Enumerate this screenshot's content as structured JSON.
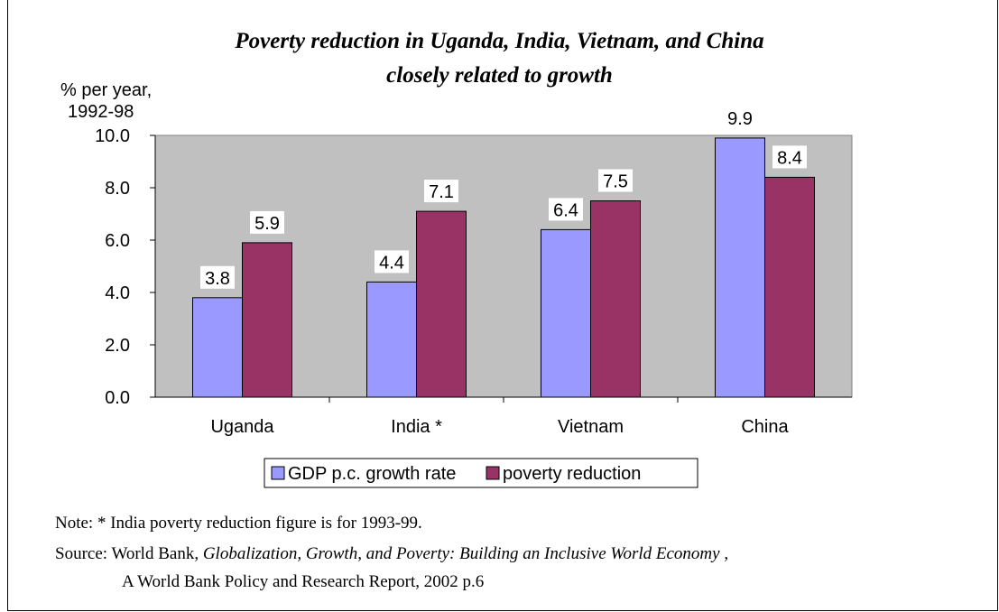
{
  "chart_data": {
    "type": "bar",
    "title_line1": "Poverty reduction in Uganda, India, Vietnam, and China",
    "title_line2": "closely related to growth",
    "ylabel_line1": "% per year,",
    "ylabel_line2": "1992-98",
    "categories": [
      "Uganda",
      "India *",
      "Vietnam",
      "China"
    ],
    "series": [
      {
        "name": "GDP p.c. growth rate",
        "values": [
          3.8,
          4.4,
          6.4,
          9.9
        ],
        "color": "#9999ff"
      },
      {
        "name": "poverty reduction",
        "values": [
          5.9,
          7.1,
          7.5,
          8.4
        ],
        "color": "#993366"
      }
    ],
    "data_labels": [
      [
        "3.8",
        "4.4",
        "6.4",
        "9.9"
      ],
      [
        "5.9",
        "7.1",
        "7.5",
        "8.4"
      ]
    ],
    "ylim": [
      0,
      10
    ],
    "yticks": [
      "0.0",
      "2.0",
      "4.0",
      "6.0",
      "8.0",
      "10.0"
    ],
    "plot_background": "#c0c0c0",
    "legend_position": "bottom"
  },
  "notes": {
    "note": "Note: * India poverty reduction figure is for 1993-99.",
    "source_prefix": "Source: World Bank, ",
    "source_title": "Globalization, Growth, and Poverty: Building an Inclusive World Economy",
    "source_suffix": " ,",
    "source_line2": "A World Bank Policy and Research Report, 2002 p.6"
  }
}
